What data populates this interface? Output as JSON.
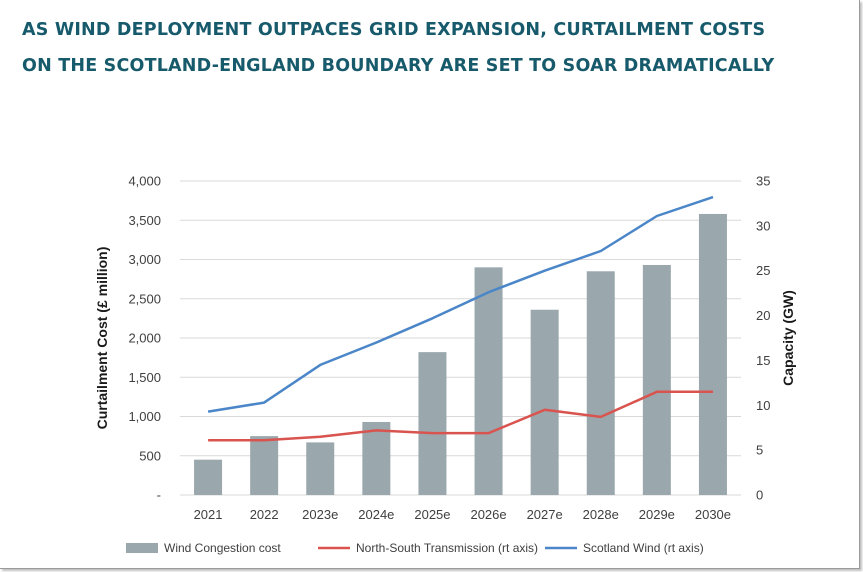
{
  "title_lines": [
    "AS WIND DEPLOYMENT OUTPACES GRID EXPANSION, CURTAILMENT COSTS",
    "ON THE SCOTLAND-ENGLAND BOUNDARY ARE SET TO SOAR DRAMATICALLY"
  ],
  "chart_data": {
    "type": "bar",
    "categories": [
      "2021",
      "2022",
      "2023e",
      "2024e",
      "2025e",
      "2026e",
      "2027e",
      "2028e",
      "2029e",
      "2030e"
    ],
    "ylabel": "Curtailment Cost (£ million)",
    "y2label": "Capacity (GW)",
    "ylim": [
      0,
      4000
    ],
    "y2lim": [
      0,
      35
    ],
    "y_ticks": [
      0,
      500,
      1000,
      1500,
      2000,
      2500,
      3000,
      3500,
      4000
    ],
    "y_tick_labels": [
      "-",
      "500",
      "1,000",
      "1,500",
      "2,000",
      "2,500",
      "3,000",
      "3,500",
      "4,000"
    ],
    "y2_ticks": [
      0,
      5,
      10,
      15,
      20,
      25,
      30,
      35
    ],
    "y2_tick_labels": [
      "0",
      "5",
      "10",
      "15",
      "20",
      "25",
      "30",
      "35"
    ],
    "grid": true,
    "legend_position": "bottom",
    "series": [
      {
        "name": "Wind Congestion cost",
        "type": "bar",
        "axis": "left",
        "color": "#9aa8ad",
        "values": [
          450,
          750,
          670,
          930,
          1820,
          2900,
          2360,
          2850,
          2930,
          3580
        ]
      },
      {
        "name": "North-South Transmission (rt axis)",
        "type": "line",
        "axis": "right",
        "color": "#d9534f",
        "values": [
          6.1,
          6.1,
          6.5,
          7.2,
          6.9,
          6.9,
          9.5,
          8.7,
          11.5,
          11.5
        ]
      },
      {
        "name": "Scotland Wind (rt axis)",
        "type": "line",
        "axis": "right",
        "color": "#4a86c8",
        "values": [
          9.3,
          10.3,
          14.5,
          17.0,
          19.7,
          22.6,
          25.0,
          27.2,
          31.1,
          33.2
        ]
      }
    ]
  }
}
